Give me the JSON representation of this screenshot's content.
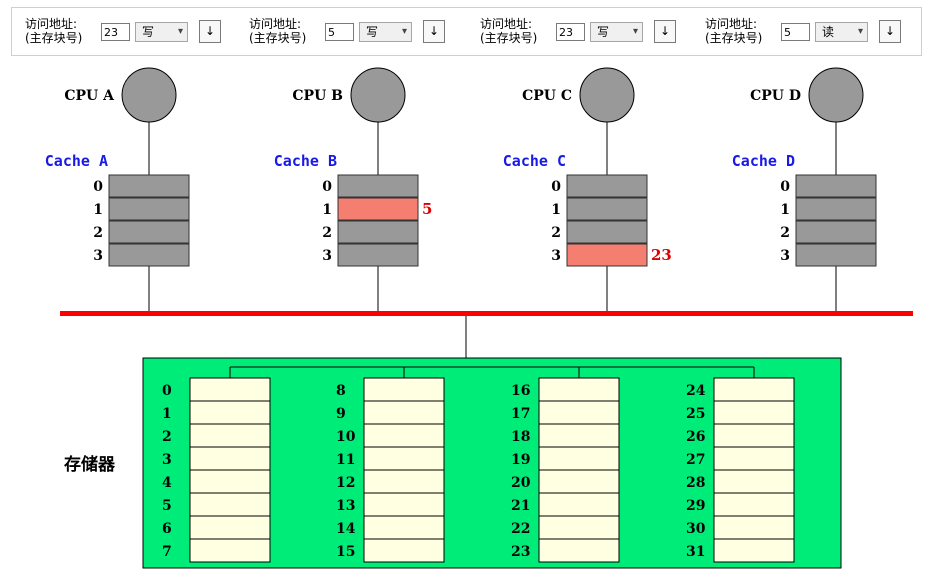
{
  "toolbar": {
    "controls": [
      {
        "label_line1": "访问地址:",
        "label_line2": "(主存块号)",
        "address": "23",
        "op": "写",
        "op_chevron": "▾",
        "button": "↓"
      },
      {
        "label_line1": "访问地址:",
        "label_line2": "(主存块号)",
        "address": "5",
        "op": "写",
        "op_chevron": "▾",
        "button": "↓"
      },
      {
        "label_line1": "访问地址:",
        "label_line2": "(主存块号)",
        "address": "23",
        "op": "写",
        "op_chevron": "▾",
        "button": "↓"
      },
      {
        "label_line1": "访问地址:",
        "label_line2": "(主存块号)",
        "address": "5",
        "op": "读",
        "op_chevron": "▾",
        "button": "↓"
      }
    ]
  },
  "processors": [
    {
      "cpu_label": "CPU A",
      "cache_label": "Cache A",
      "lines": [
        "0",
        "1",
        "2",
        "3"
      ],
      "filled": []
    },
    {
      "cpu_label": "CPU B",
      "cache_label": "Cache B",
      "lines": [
        "0",
        "1",
        "2",
        "3"
      ],
      "filled": [
        {
          "line": 1,
          "value": "5"
        }
      ]
    },
    {
      "cpu_label": "CPU C",
      "cache_label": "Cache C",
      "lines": [
        "0",
        "1",
        "2",
        "3"
      ],
      "filled": [
        {
          "line": 3,
          "value": "23"
        }
      ]
    },
    {
      "cpu_label": "CPU D",
      "cache_label": "Cache D",
      "lines": [
        "0",
        "1",
        "2",
        "3"
      ],
      "filled": []
    }
  ],
  "memory": {
    "label": "存储器",
    "banks": [
      [
        "0",
        "1",
        "2",
        "3",
        "4",
        "5",
        "6",
        "7"
      ],
      [
        "8",
        "9",
        "10",
        "11",
        "12",
        "13",
        "14",
        "15"
      ],
      [
        "16",
        "17",
        "18",
        "19",
        "20",
        "21",
        "22",
        "23"
      ],
      [
        "24",
        "25",
        "26",
        "27",
        "28",
        "29",
        "30",
        "31"
      ]
    ]
  },
  "colors": {
    "cache_empty": "#999999",
    "cache_filled": "#f47f70",
    "bus": "#ff0000",
    "memory_bg": "#00ec78",
    "memory_cell": "#ffffe1",
    "cpu_circle": "#999999",
    "cache_label": "#1a1ae6",
    "value_text": "#e00000"
  }
}
